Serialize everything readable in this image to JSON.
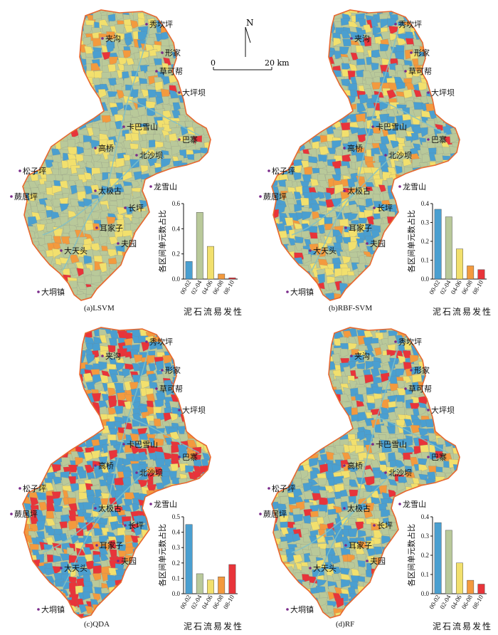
{
  "scale": {
    "north": "N",
    "zero": "0",
    "dist": "20 km"
  },
  "place_names": [
    "秀坎坪",
    "夹沟",
    "形家",
    "草可帮",
    "大坪坝",
    "卡巴雪山",
    "巴寨",
    "高桥",
    "北沙坝",
    "松子坪",
    "太极古",
    "龙雪山",
    "蕨居坪",
    "长坪",
    "耳家子",
    "大天头",
    "夫园",
    "大垌镇"
  ],
  "xlabel": "泥石流易发性",
  "ylabel": "各区间单元数占比",
  "categories": [
    "00-02",
    "02-04",
    "04-06",
    "06-08",
    "08-10"
  ],
  "series_colors": [
    "#4a9fd0",
    "#b9c99a",
    "#f2e06d",
    "#f39a3e",
    "#e8343a"
  ],
  "chart_data": [
    {
      "type": "bar",
      "caption": "(a)LSVM",
      "categories": [
        "00-02",
        "02-04",
        "04-06",
        "06-08",
        "08-10"
      ],
      "values": [
        0.14,
        0.53,
        0.26,
        0.04,
        0.01
      ],
      "ylim": [
        0,
        0.6
      ],
      "yticks": [
        "0.0",
        "0.2",
        "0.4",
        "0.6"
      ],
      "xlabel": "泥石流易发性",
      "ylabel": "各区间单元数占比"
    },
    {
      "type": "bar",
      "caption": "(b)RBF-SVM",
      "categories": [
        "00-02",
        "02-04",
        "04-06",
        "06-08",
        "08-10"
      ],
      "values": [
        0.37,
        0.33,
        0.16,
        0.07,
        0.05
      ],
      "ylim": [
        0,
        0.4
      ],
      "yticks": [
        "0.0",
        "0.1",
        "0.2",
        "0.3",
        "0.4"
      ],
      "xlabel": "泥石流易发性",
      "ylabel": "各区间单元数占比"
    },
    {
      "type": "bar",
      "caption": "(c)QDA",
      "categories": [
        "00-02",
        "02-04",
        "04-06",
        "06-08",
        "08-10"
      ],
      "values": [
        0.45,
        0.13,
        0.09,
        0.11,
        0.19
      ],
      "ylim": [
        0,
        0.5
      ],
      "yticks": [
        "0.0",
        "0.1",
        "0.2",
        "0.3",
        "0.4",
        "0.5"
      ],
      "xlabel": "泥石流易发性",
      "ylabel": "各区间单元数占比"
    },
    {
      "type": "bar",
      "caption": "(d)RF",
      "categories": [
        "00-02",
        "02-04",
        "04-06",
        "06-08",
        "08-10"
      ],
      "values": [
        0.37,
        0.33,
        0.16,
        0.07,
        0.05
      ],
      "ylim": [
        0,
        0.4
      ],
      "yticks": [
        "0.0",
        "0.1",
        "0.2",
        "0.3",
        "0.4"
      ],
      "xlabel": "泥石流易发性",
      "ylabel": "各区间单元数占比"
    }
  ]
}
